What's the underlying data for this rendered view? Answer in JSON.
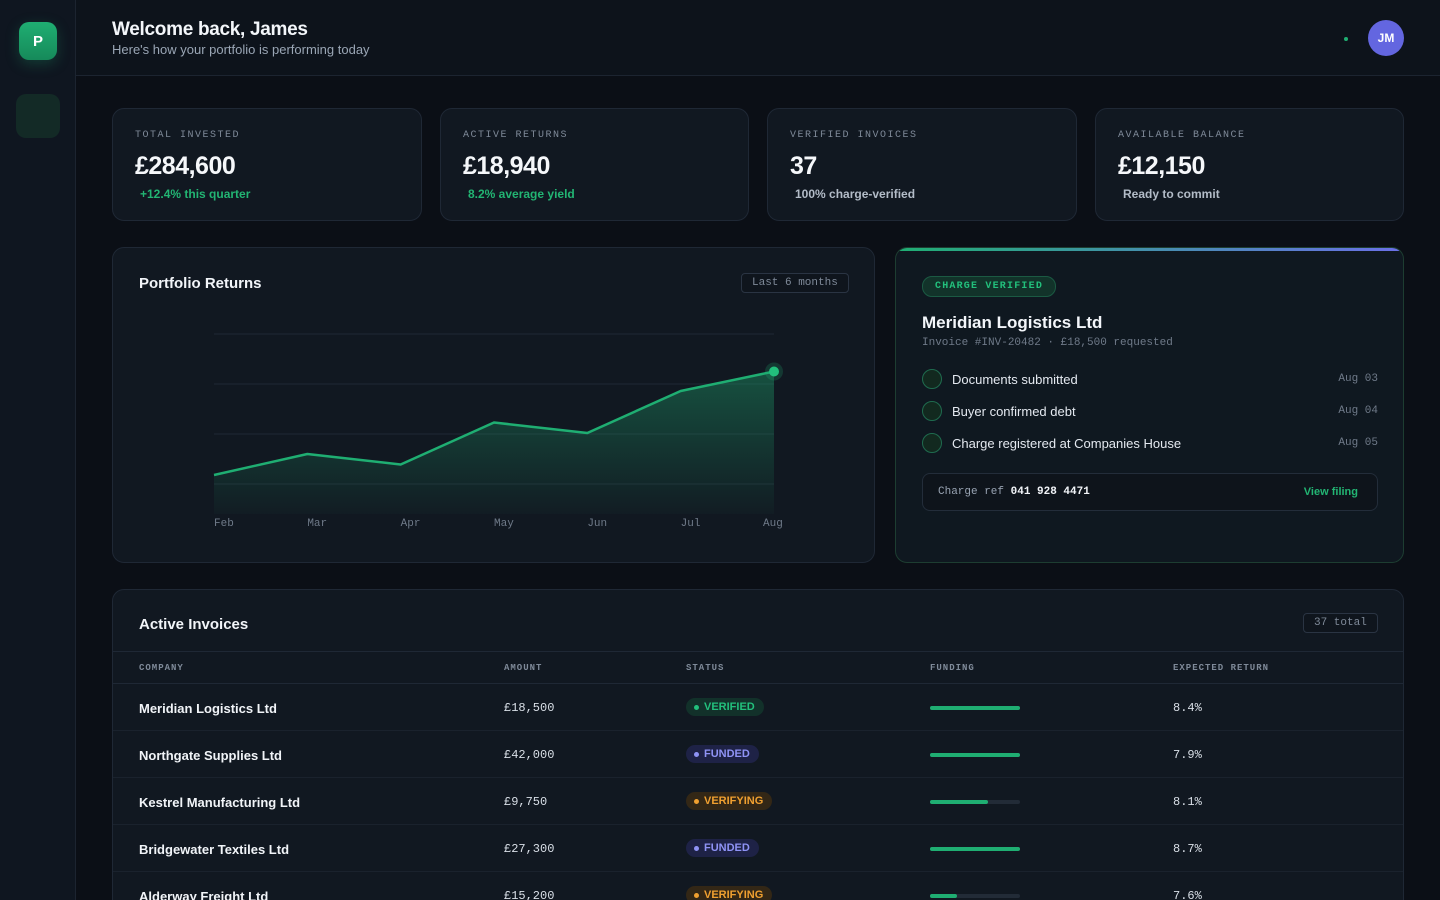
{
  "sidebar": {
    "logo": "P"
  },
  "header": {
    "welcome": "Welcome back, James",
    "subtitle": "Here's how your portfolio is performing today",
    "avatar_initials": "JM"
  },
  "stats": [
    {
      "label": "TOTAL INVESTED",
      "value": "£284,600",
      "sub": "+12.4% this quarter"
    },
    {
      "label": "ACTIVE RETURNS",
      "value": "£18,940",
      "sub": "8.2% average yield"
    },
    {
      "label": "VERIFIED INVOICES",
      "value": "37",
      "sub": "100% charge-verified"
    },
    {
      "label": "AVAILABLE BALANCE",
      "value": "£12,150",
      "sub": "Ready to commit"
    }
  ],
  "portfolio": {
    "title": "Portfolio Returns",
    "range_chip": "Last 6 months"
  },
  "chart_data": {
    "type": "area",
    "title": "Portfolio Returns",
    "categories": [
      "Feb",
      "Mar",
      "Apr",
      "May",
      "Jun",
      "Jul",
      "Aug"
    ],
    "values": [
      26,
      40,
      33,
      61,
      54,
      82,
      95
    ],
    "ylim": [
      0,
      120
    ],
    "grid": true,
    "color": "#1fae72"
  },
  "verification": {
    "chip": "CHARGE VERIFIED",
    "company": "Meridian Logistics Ltd",
    "invoice": "Invoice #INV-20482 · £18,500 requested",
    "steps": [
      {
        "label": "Documents submitted",
        "date": "Aug 03"
      },
      {
        "label": "Buyer confirmed debt",
        "date": "Aug 04"
      },
      {
        "label": "Charge registered at Companies House",
        "date": "Aug 05"
      }
    ],
    "charge_ref_label": "Charge ref",
    "charge_ref_value": "041 928 4471",
    "view_filing": "View filing"
  },
  "invoices": {
    "title": "Active Invoices",
    "total_chip": "37 total",
    "columns": [
      "COMPANY",
      "AMOUNT",
      "STATUS",
      "FUNDING",
      "EXPECTED RETURN"
    ],
    "rows": [
      {
        "company": "Meridian Logistics Ltd",
        "amount": "£18,500",
        "status": "VERIFIED",
        "funding": 1.0,
        "return": "8.4%"
      },
      {
        "company": "Northgate Supplies Ltd",
        "amount": "£42,000",
        "status": "FUNDED",
        "funding": 1.0,
        "return": "7.9%"
      },
      {
        "company": "Kestrel Manufacturing Ltd",
        "amount": "£9,750",
        "status": "VERIFYING",
        "funding": 0.64,
        "return": "8.1%"
      },
      {
        "company": "Bridgewater Textiles Ltd",
        "amount": "£27,300",
        "status": "FUNDED",
        "funding": 1.0,
        "return": "8.7%"
      },
      {
        "company": "Alderway Freight Ltd",
        "amount": "£15,200",
        "status": "VERIFYING",
        "funding": 0.3,
        "return": "7.6%"
      }
    ]
  }
}
